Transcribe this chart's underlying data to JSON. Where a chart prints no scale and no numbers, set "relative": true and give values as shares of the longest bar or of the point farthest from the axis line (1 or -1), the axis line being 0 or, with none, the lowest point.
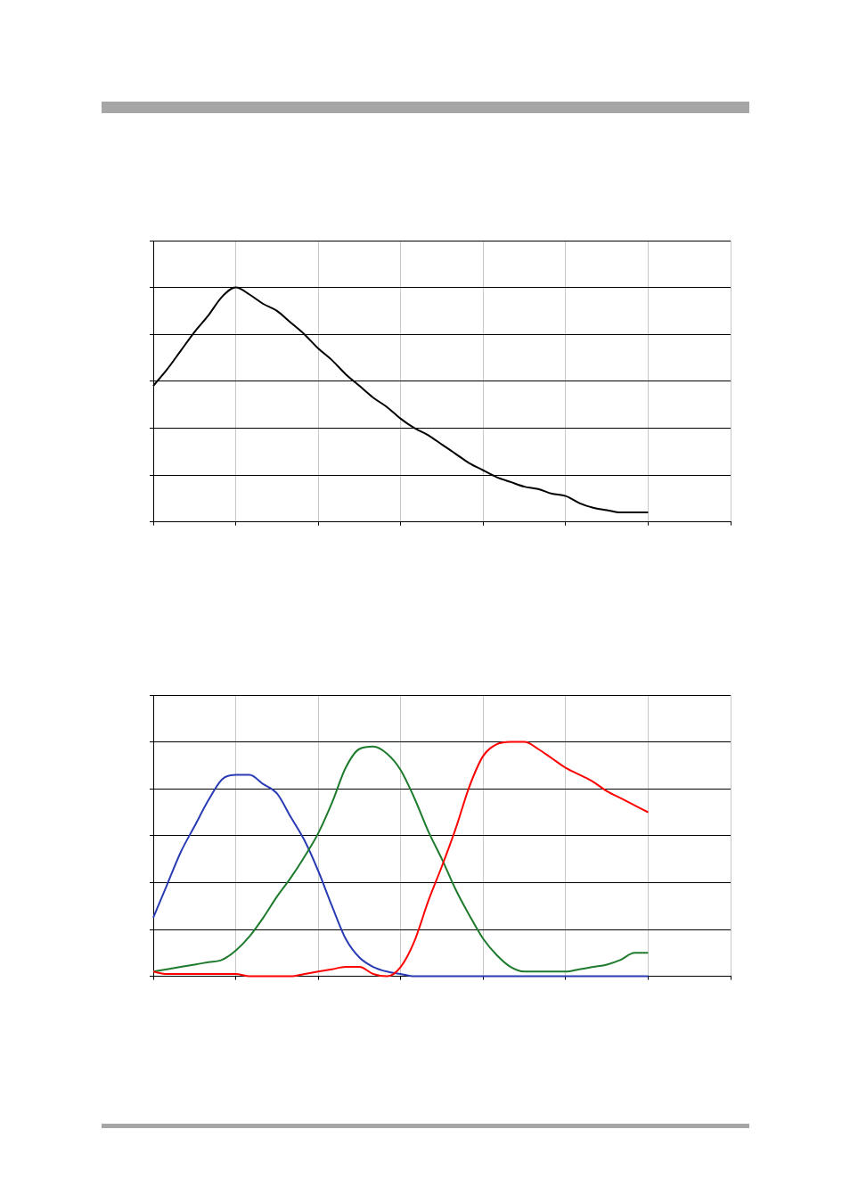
{
  "chart_data": [
    {
      "type": "line",
      "relative": true,
      "grid": true,
      "marker": "none",
      "line_style": "solid",
      "categories": [
        null,
        null,
        null,
        null,
        null,
        null,
        null,
        null,
        null,
        null,
        null,
        null,
        null,
        null,
        null,
        null,
        null,
        null,
        null,
        null,
        null,
        null,
        null,
        null,
        null,
        null,
        null,
        null,
        null,
        null,
        null,
        null,
        null,
        null,
        null,
        null,
        null,
        null,
        null,
        null,
        null,
        null,
        null
      ],
      "series": [
        {
          "color": "#000000",
          "values": [
            0.58,
            0.65,
            0.73,
            0.81,
            0.88,
            0.96,
            1,
            0.97,
            0.93,
            0.9,
            0.85,
            0.8,
            0.74,
            0.69,
            0.63,
            0.58,
            0.53,
            0.49,
            0.44,
            0.4,
            0.37,
            0.33,
            0.29,
            0.25,
            0.22,
            0.19,
            0.17,
            0.15,
            0.14,
            0.12,
            0.11,
            0.08,
            0.06,
            0.05,
            0.04,
            0.04,
            0.04,
            null,
            null,
            null,
            null,
            null,
            null
          ]
        }
      ]
    },
    {
      "type": "line",
      "relative": true,
      "grid": true,
      "marker": "none",
      "line_style": "solid",
      "categories": [
        null,
        null,
        null,
        null,
        null,
        null,
        null,
        null,
        null,
        null,
        null,
        null,
        null,
        null,
        null,
        null,
        null,
        null,
        null,
        null,
        null,
        null,
        null,
        null,
        null,
        null,
        null,
        null,
        null,
        null,
        null,
        null,
        null,
        null,
        null,
        null,
        null,
        null,
        null,
        null,
        null,
        null,
        null
      ],
      "series": [
        {
          "color": "#ff0000",
          "values": [
            0.02,
            0.01,
            0.01,
            0.01,
            0.01,
            0.01,
            0.01,
            0,
            0,
            0,
            0,
            0.01,
            0.02,
            0.03,
            0.04,
            0.04,
            0.01,
            0,
            0.04,
            0.15,
            0.32,
            0.47,
            0.63,
            0.81,
            0.94,
            0.99,
            1,
            1,
            0.97,
            0.93,
            0.89,
            0.86,
            0.83,
            0.79,
            0.76,
            0.73,
            0.7,
            null,
            null,
            null,
            null,
            null,
            null
          ]
        },
        {
          "color": "#1e7b2e",
          "values": [
            0.02,
            0.03,
            0.04,
            0.05,
            0.06,
            0.07,
            0.11,
            0.17,
            0.25,
            0.34,
            0.42,
            0.51,
            0.61,
            0.74,
            0.89,
            0.97,
            0.98,
            0.95,
            0.88,
            0.76,
            0.62,
            0.5,
            0.37,
            0.26,
            0.16,
            0.09,
            0.04,
            0.02,
            0.02,
            0.02,
            0.02,
            0.03,
            0.04,
            0.05,
            0.07,
            0.1,
            0.1,
            null,
            null,
            null,
            null,
            null,
            null
          ]
        },
        {
          "color": "#2a3cb4",
          "values": [
            0.25,
            0.39,
            0.53,
            0.64,
            0.75,
            0.84,
            0.86,
            0.86,
            0.82,
            0.78,
            0.68,
            0.58,
            0.45,
            0.3,
            0.16,
            0.08,
            0.04,
            0.02,
            0.01,
            0,
            0,
            0,
            0,
            0,
            0,
            0,
            0,
            0,
            0,
            0,
            0,
            0,
            0,
            0,
            0,
            0,
            0,
            null,
            null,
            null,
            null,
            null,
            null
          ]
        }
      ]
    }
  ]
}
